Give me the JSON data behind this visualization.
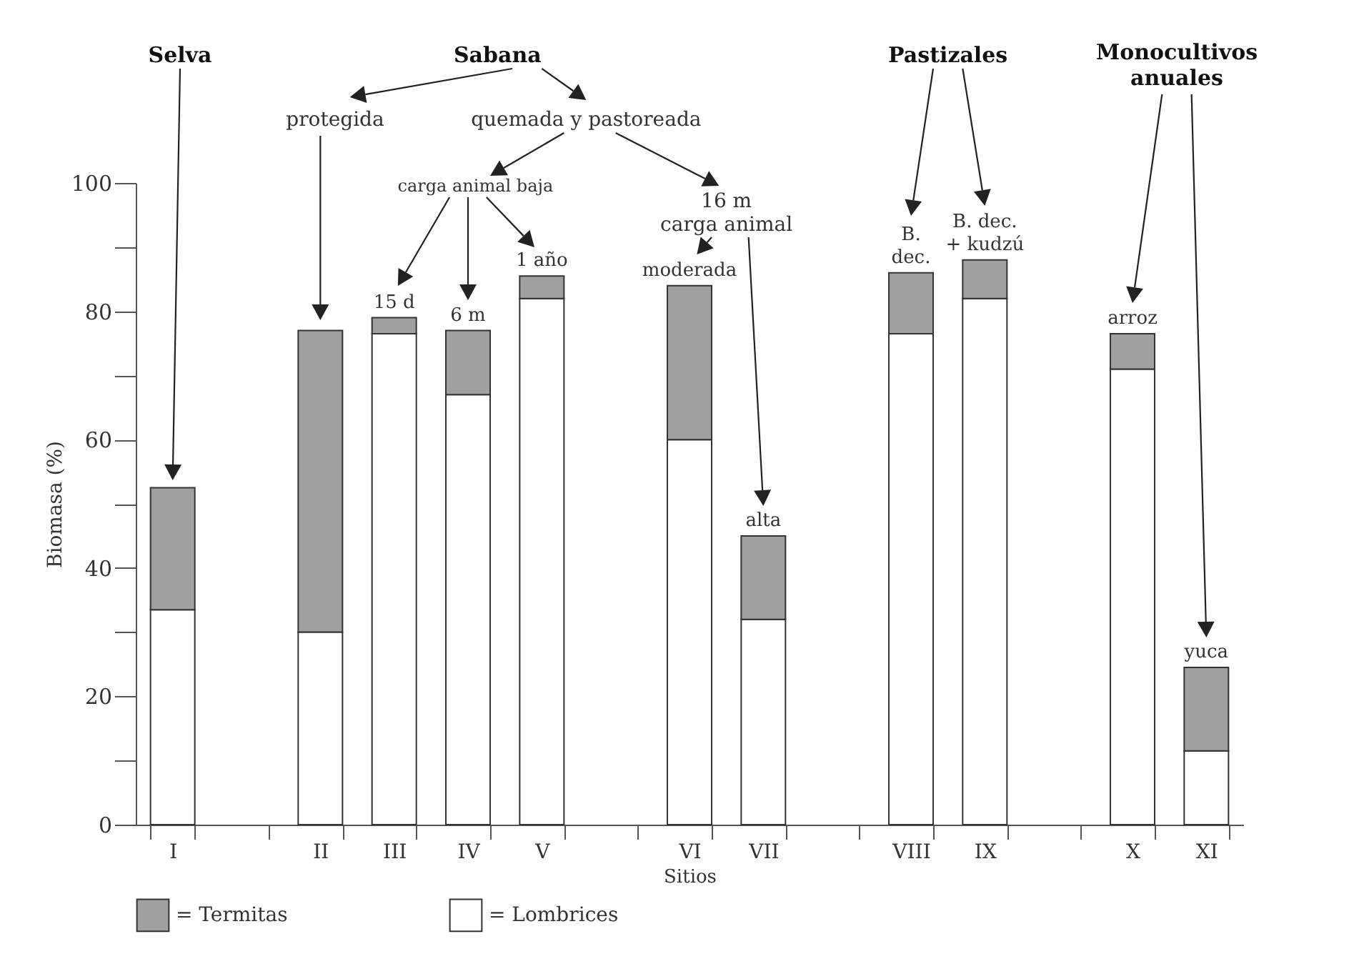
{
  "chart_data": {
    "type": "bar",
    "xlabel": "Sitios",
    "ylabel": "Biomasa (%)",
    "categories": [
      "I",
      null,
      "II",
      "III",
      "IV",
      "V",
      null,
      "VI",
      "VII",
      null,
      "VIII",
      "IX",
      null,
      "X",
      "XI"
    ],
    "stacked": true,
    "series": [
      {
        "name": "= Lombrices",
        "color": "#ffffff",
        "values": [
          33.5,
          null,
          30,
          76.5,
          67,
          82,
          null,
          60,
          32,
          null,
          76.5,
          82,
          null,
          71,
          11.5
        ]
      },
      {
        "name": "= Termitas",
        "color": "#a0a0a0",
        "values": [
          19,
          null,
          47,
          2.5,
          10,
          3.5,
          null,
          24,
          13,
          null,
          9.5,
          6,
          null,
          5.5,
          13
        ]
      }
    ],
    "ylim": [
      0,
      100
    ],
    "yticks": [
      0,
      {
        "value": 10,
        "label": null
      },
      20,
      {
        "value": 30,
        "label": null
      },
      40,
      {
        "value": 50,
        "label": null
      },
      60,
      {
        "value": 70,
        "label": null
      },
      80,
      {
        "value": 90,
        "label": null
      },
      100
    ],
    "legend": "bottom",
    "annotations": [
      "Selva",
      "Sabana",
      "Pastizales",
      "Monocultivos anuales",
      "protegida",
      "quemada y pastoreada",
      "carga animal baja",
      "16 m carga animal",
      {
        "text": "15 d",
        "x": "III",
        "y": 79
      },
      {
        "text": "6 m",
        "x": "IV",
        "y": 77
      },
      {
        "text": "1 año",
        "x": "V",
        "y": 85.5
      },
      {
        "text": "moderada",
        "x": "VI",
        "y": 84
      },
      {
        "text": "alta",
        "x": "VII",
        "y": 45
      },
      {
        "text": "B. dec.",
        "x": "VIII",
        "y": 86
      },
      {
        "text": "B. dec. + kudzú",
        "x": "IX",
        "y": 88
      },
      {
        "text": "arroz",
        "x": "X",
        "y": 76.5
      },
      {
        "text": "yuca",
        "x": "XI",
        "y": 24.5
      }
    ]
  }
}
